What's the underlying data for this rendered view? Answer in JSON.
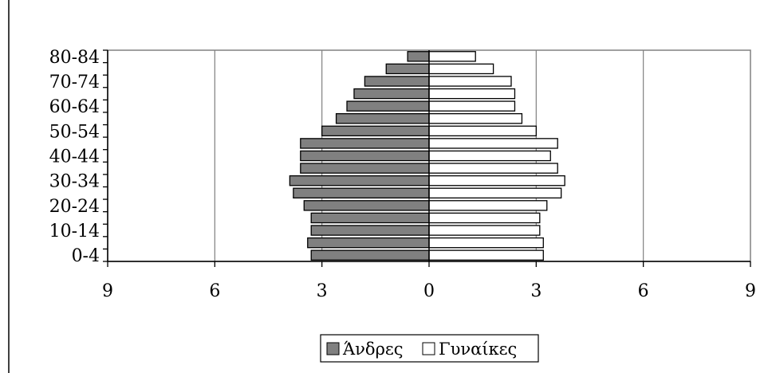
{
  "chart_data": {
    "type": "bar",
    "orientation": "horizontal",
    "style": "population-pyramid",
    "categories": [
      "0-4",
      "5-9",
      "10-14",
      "15-19",
      "20-24",
      "25-29",
      "30-34",
      "35-39",
      "40-44",
      "45-49",
      "50-54",
      "55-59",
      "60-64",
      "65-69",
      "70-74",
      "75-79",
      "80-84"
    ],
    "category_labels_shown": [
      "0-4",
      "10-14",
      "20-24",
      "30-34",
      "40-44",
      "50-54",
      "60-64",
      "70-74",
      "80-84"
    ],
    "series": [
      {
        "name": "Άνδρες",
        "side": "left",
        "color": "#808080",
        "values": [
          3.3,
          3.4,
          3.3,
          3.3,
          3.5,
          3.8,
          3.9,
          3.6,
          3.6,
          3.6,
          3.0,
          2.6,
          2.3,
          2.1,
          1.8,
          1.2,
          0.6
        ]
      },
      {
        "name": "Γυναίκες",
        "side": "right",
        "color": "#ffffff",
        "values": [
          3.2,
          3.2,
          3.1,
          3.1,
          3.3,
          3.7,
          3.8,
          3.6,
          3.4,
          3.6,
          3.0,
          2.6,
          2.4,
          2.4,
          2.3,
          1.8,
          1.3
        ]
      }
    ],
    "xlim": [
      -9,
      9
    ],
    "x_ticks": [
      {
        "value": -9,
        "label": "9"
      },
      {
        "value": -6,
        "label": "6"
      },
      {
        "value": -3,
        "label": "3"
      },
      {
        "value": 0,
        "label": "0"
      },
      {
        "value": 3,
        "label": "3"
      },
      {
        "value": 6,
        "label": "6"
      },
      {
        "value": 9,
        "label": "9"
      }
    ],
    "title": "",
    "xlabel": "",
    "ylabel": "",
    "grid": "vertical",
    "legend_position": "bottom-center"
  }
}
